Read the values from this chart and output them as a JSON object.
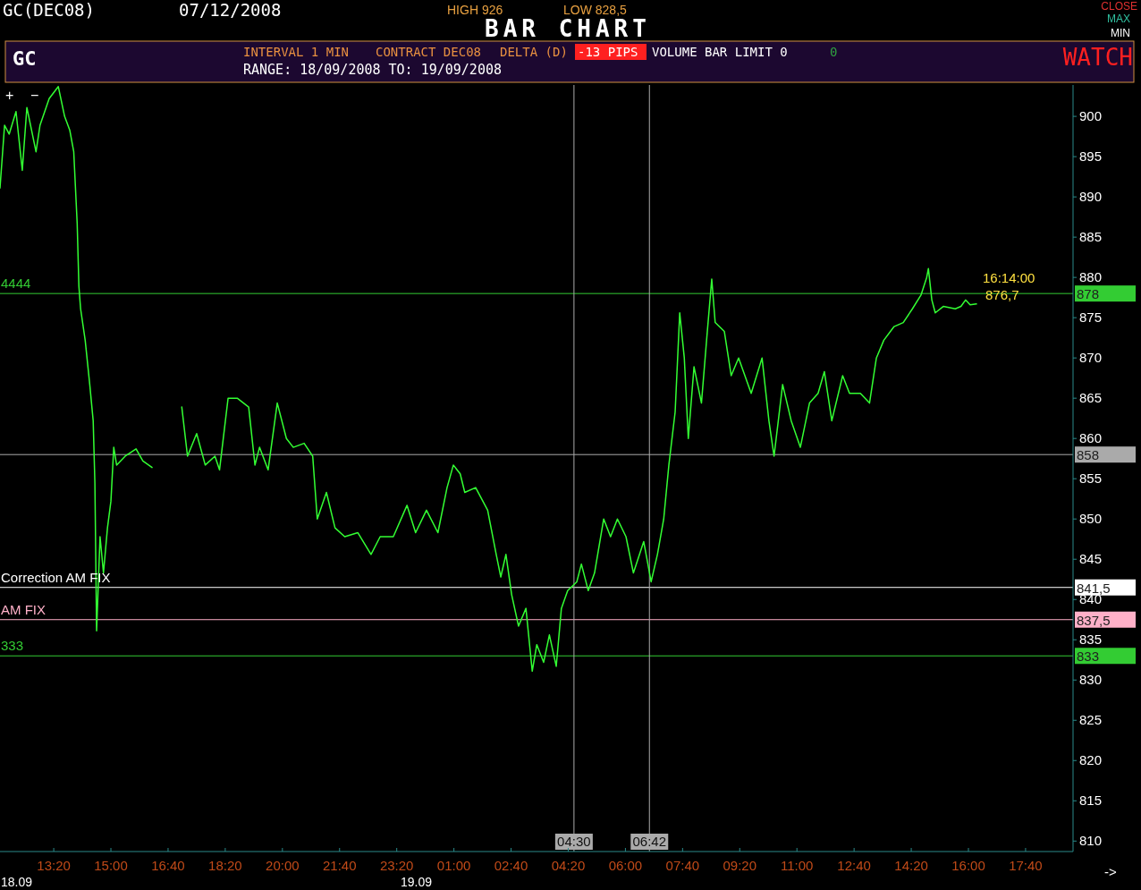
{
  "chart_data": {
    "type": "line",
    "title": "BAR CHART",
    "x": [
      "2008-09-18T11:46",
      "2008-09-18T11:54",
      "2008-09-18T12:02",
      "2008-09-18T12:14",
      "2008-09-18T12:25",
      "2008-09-18T12:33",
      "2008-09-18T12:49",
      "2008-09-18T12:56",
      "2008-09-18T13:12",
      "2008-09-18T13:28",
      "2008-09-18T13:39",
      "2008-09-18T13:48",
      "2008-09-18T13:55",
      "2008-09-18T14:01",
      "2008-09-18T14:04",
      "2008-09-18T14:07",
      "2008-09-18T14:15",
      "2008-09-18T14:23",
      "2008-09-18T14:29",
      "2008-09-18T14:32",
      "2008-09-18T14:35",
      "2008-09-18T14:41",
      "2008-09-18T14:47",
      "2008-09-18T14:54",
      "2008-09-18T15:00",
      "2008-09-18T15:05",
      "2008-09-18T15:10",
      "2008-09-18T15:25",
      "2008-09-18T15:44",
      "2008-09-18T15:56",
      "2008-09-18T16:12",
      "2008-09-18T16:36",
      "2008-09-18T17:04",
      "2008-09-18T17:14",
      "2008-09-18T17:30",
      "2008-09-18T17:45",
      "2008-09-18T18:02",
      "2008-09-18T18:10",
      "2008-09-18T18:25",
      "2008-09-18T18:41",
      "2008-09-18T19:01",
      "2008-09-18T19:12",
      "2008-09-18T19:20",
      "2008-09-18T19:35",
      "2008-09-18T19:51",
      "2008-09-18T20:07",
      "2008-09-18T20:19",
      "2008-09-18T20:38",
      "2008-09-18T20:53",
      "2008-09-18T21:01",
      "2008-09-18T21:17",
      "2008-09-18T21:32",
      "2008-09-18T21:49",
      "2008-09-18T22:12",
      "2008-09-18T22:35",
      "2008-09-18T22:51",
      "2008-09-18T23:14",
      "2008-09-18T23:38",
      "2008-09-18T23:53",
      "2008-09-19T00:12",
      "2008-09-19T00:32",
      "2008-09-19T00:48",
      "2008-09-19T00:59",
      "2008-09-19T01:11",
      "2008-09-19T01:19",
      "2008-09-19T01:38",
      "2008-09-19T01:59",
      "2008-09-19T02:14",
      "2008-09-19T02:22",
      "2008-09-19T02:31",
      "2008-09-19T02:41",
      "2008-09-19T02:53",
      "2008-09-19T03:06",
      "2008-09-19T03:17",
      "2008-09-19T03:25",
      "2008-09-19T03:37",
      "2008-09-19T03:47",
      "2008-09-19T03:59",
      "2008-09-19T04:08",
      "2008-09-19T04:19",
      "2008-09-19T04:35",
      "2008-09-19T04:43",
      "2008-09-19T04:55",
      "2008-09-19T05:06",
      "2008-09-19T05:22",
      "2008-09-19T05:34",
      "2008-09-19T05:46",
      "2008-09-19T06:01",
      "2008-09-19T06:14",
      "2008-09-19T06:32",
      "2008-09-19T06:45",
      "2008-09-19T06:56",
      "2008-09-19T07:07",
      "2008-09-19T07:16",
      "2008-09-19T07:27",
      "2008-09-19T07:35",
      "2008-09-19T07:43",
      "2008-09-19T07:50",
      "2008-09-19T08:00",
      "2008-09-19T08:13",
      "2008-09-19T08:22",
      "2008-09-19T08:31",
      "2008-09-19T08:37",
      "2008-09-19T08:53",
      "2008-09-19T09:05",
      "2008-09-19T09:18",
      "2008-09-19T09:40",
      "2008-09-19T09:59",
      "2008-09-19T10:11",
      "2008-09-19T10:20",
      "2008-09-19T10:35",
      "2008-09-19T10:50",
      "2008-09-19T11:06",
      "2008-09-19T11:22",
      "2008-09-19T11:37",
      "2008-09-19T11:48",
      "2008-09-19T12:01",
      "2008-09-19T12:20",
      "2008-09-19T12:32",
      "2008-09-19T12:51",
      "2008-09-19T13:07",
      "2008-09-19T13:19",
      "2008-09-19T13:32",
      "2008-09-19T13:50",
      "2008-09-19T14:06",
      "2008-09-19T14:22",
      "2008-09-19T14:37",
      "2008-09-19T14:47",
      "2008-09-19T14:50",
      "2008-09-19T14:56",
      "2008-09-19T15:02",
      "2008-09-19T15:16",
      "2008-09-19T15:37",
      "2008-09-19T15:47",
      "2008-09-19T15:55",
      "2008-09-19T16:03",
      "2008-09-19T16:14"
    ],
    "series": [
      {
        "color": "#33ff33",
        "values": [
          891.1,
          898.9,
          897.8,
          900.6,
          893.3,
          901.1,
          895.6,
          898.9,
          902.2,
          903.7,
          900,
          898.3,
          895.6,
          886.7,
          878.9,
          876.1,
          872.2,
          866.7,
          862.2,
          854.4,
          836.1,
          847.8,
          843.3,
          848.9,
          852.2,
          858.9,
          856.7,
          857.8,
          858.7,
          857.2,
          856.4,
          null,
          863.9,
          857.8,
          860.6,
          856.7,
          857.8,
          856.1,
          865,
          865,
          863.9,
          856.7,
          858.9,
          856.1,
          864.4,
          860,
          858.9,
          859.4,
          857.8,
          850,
          853.3,
          848.9,
          847.8,
          848.3,
          845.6,
          847.8,
          847.8,
          851.7,
          848.3,
          851.1,
          848.3,
          853.9,
          856.7,
          855.6,
          853.3,
          853.9,
          851.1,
          845.6,
          842.8,
          845.6,
          840.6,
          836.7,
          838.9,
          831.1,
          834.4,
          832.2,
          835.6,
          831.7,
          838.9,
          841.1,
          842.2,
          844.4,
          841.1,
          843.3,
          850,
          847.8,
          850,
          847.8,
          843.3,
          847.2,
          842.2,
          845.6,
          850,
          856.7,
          863.3,
          875.6,
          870,
          860,
          868.9,
          864.4,
          872.2,
          879.8,
          874.4,
          873.3,
          867.8,
          870,
          865.6,
          870,
          862.2,
          857.8,
          866.7,
          862.2,
          858.9,
          864.4,
          865.6,
          868.3,
          862.2,
          867.8,
          865.6,
          865.6,
          864.4,
          870,
          872.2,
          873.9,
          874.4,
          876.1,
          877.8,
          880,
          881.1,
          877.2,
          875.6,
          876.4,
          876.1,
          876.4,
          877.2,
          876.6,
          876.7
        ]
      }
    ],
    "xlim": [
      "2008-09-18T11:46",
      "2008-09-19T19:03"
    ],
    "xticks": [
      {
        "value": "2008-09-18T13:20",
        "label": "13:20"
      },
      {
        "value": "2008-09-18T15:00",
        "label": "15:00"
      },
      {
        "value": "2008-09-18T16:40",
        "label": "16:40"
      },
      {
        "value": "2008-09-18T18:20",
        "label": "18:20"
      },
      {
        "value": "2008-09-18T20:00",
        "label": "20:00"
      },
      {
        "value": "2008-09-18T21:40",
        "label": "21:40"
      },
      {
        "value": "2008-09-18T23:20",
        "label": "23:20"
      },
      {
        "value": "2008-09-19T01:00",
        "label": "01:00"
      },
      {
        "value": "2008-09-19T02:40",
        "label": "02:40"
      },
      {
        "value": "2008-09-19T04:20",
        "label": "04:20"
      },
      {
        "value": "2008-09-19T06:00",
        "label": "06:00"
      },
      {
        "value": "2008-09-19T07:40",
        "label": "07:40"
      },
      {
        "value": "2008-09-19T09:20",
        "label": "09:20"
      },
      {
        "value": "2008-09-19T11:00",
        "label": "11:00"
      },
      {
        "value": "2008-09-19T12:40",
        "label": "12:40"
      },
      {
        "value": "2008-09-19T14:20",
        "label": "14:20"
      },
      {
        "value": "2008-09-19T16:00",
        "label": "16:00"
      },
      {
        "value": "2008-09-19T17:40",
        "label": "17:40"
      }
    ],
    "ylim": [
      808.7,
      903.9
    ],
    "yticks": [
      810,
      815,
      820,
      825,
      830,
      835,
      840,
      845,
      850,
      855,
      860,
      865,
      870,
      875,
      880,
      885,
      890,
      895,
      900
    ],
    "ref_lines": [
      {
        "axis": "y",
        "value": 878,
        "label": "878",
        "color": "#33cc33"
      },
      {
        "axis": "y",
        "value": 858,
        "label": "858",
        "color": "#aaaaaa"
      },
      {
        "axis": "y",
        "value": 841.5,
        "label": "841,5",
        "color": "#ffffff"
      },
      {
        "axis": "y",
        "value": 837.5,
        "label": "837,5",
        "color": "#ffb0c8"
      },
      {
        "axis": "y",
        "value": 833,
        "label": "833",
        "color": "#33cc33"
      },
      {
        "axis": "x",
        "value": "2008-09-19T04:30",
        "label": "04:30",
        "color": "#aaaaaa"
      },
      {
        "axis": "x",
        "value": "2008-09-19T06:42",
        "label": "06:42",
        "color": "#aaaaaa"
      }
    ],
    "annotations": [
      "GC(DEC08)",
      "07/12/2008",
      "HIGH 926",
      "LOW 828,5",
      "CLOSE",
      "MAX",
      "MIN",
      "GC",
      "INTERVAL 1 MIN",
      "CONTRACT DEC08",
      "DELTA (D)",
      "-13 PIPS",
      "VOLUME BAR LIMIT 0",
      "0",
      "RANGE: 18/09/2008 TO: 19/09/2008",
      "WATCH",
      "+",
      "−",
      {
        "text": "16:14:00",
        "x": "2008-09-19T16:14",
        "y": 876.7
      },
      {
        "text": "876,7",
        "x": "2008-09-19T16:14",
        "y": 876.7
      },
      "18.09",
      "19.09",
      "->",
      {
        "text": "4444",
        "y": 878
      },
      {
        "text": "Correction AM FIX",
        "y": 841.5
      },
      {
        "text": "AM FIX",
        "y": 837.5
      },
      {
        "text": "333",
        "y": 833
      }
    ],
    "marker": "none",
    "line_style": "solid",
    "grid": false
  }
}
